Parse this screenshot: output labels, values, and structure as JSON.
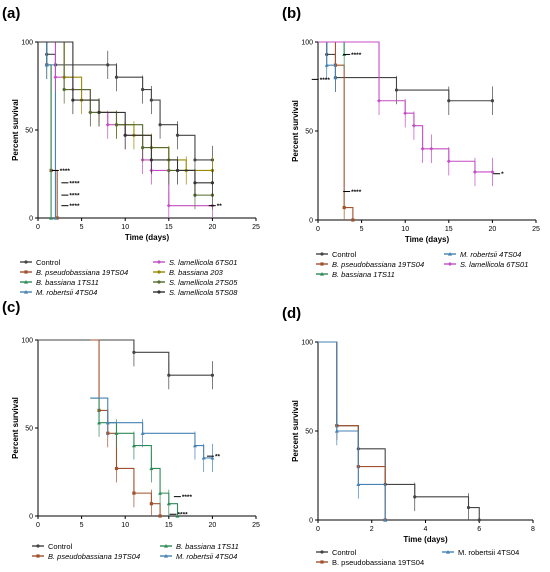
{
  "figure": {
    "panels": [
      "(a)",
      "(b)",
      "(c)",
      "(d)"
    ]
  },
  "chart_data": [
    {
      "type": "line",
      "panel": "(a)",
      "xlabel": "Time (days)",
      "ylabel": "Percent survival",
      "xlim": [
        0,
        25
      ],
      "ylim": [
        0,
        100
      ],
      "xticks": [
        0,
        5,
        10,
        15,
        20,
        25
      ],
      "yticks": [
        0,
        50,
        100
      ],
      "legend_placement": "bottom",
      "series": [
        {
          "name": "Control",
          "italic": false,
          "color": "#444444",
          "style": "circle",
          "x": [
            0,
            1,
            2,
            8,
            9,
            12,
            13,
            14,
            16,
            18,
            20
          ],
          "y": [
            100,
            93,
            87,
            87,
            80,
            73,
            67,
            53,
            47,
            33,
            33
          ]
        },
        {
          "name": "B. pseudobassiana 19TS04",
          "italic": true,
          "color": "#a0522d",
          "style": "square",
          "x": [
            0,
            1,
            1.5,
            2.2
          ],
          "y": [
            100,
            87,
            27,
            0
          ]
        },
        {
          "name": "B. bassiana 1TS11",
          "italic": true,
          "color": "#2e8b57",
          "style": "triangle",
          "x": [
            0,
            1,
            1.5
          ],
          "y": [
            100,
            87,
            0
          ]
        },
        {
          "name": "M. robertsii 4TS04",
          "italic": true,
          "color": "#4682b4",
          "style": "triangle",
          "x": [
            0,
            1,
            2
          ],
          "y": [
            100,
            87,
            0
          ]
        },
        {
          "name": "S. lamellicola 6TS01",
          "italic": true,
          "color": "#c44dc4",
          "style": "diamond",
          "x": [
            0,
            2,
            4,
            6,
            8,
            10,
            12,
            13,
            15,
            20
          ],
          "y": [
            100,
            80,
            73,
            60,
            53,
            47,
            33,
            27,
            7,
            7
          ]
        },
        {
          "name": "B. bassiana 203",
          "italic": true,
          "color": "#9a8a00",
          "style": "circle",
          "x": [
            0,
            3,
            5,
            7,
            9,
            11,
            13,
            15,
            17,
            20
          ],
          "y": [
            100,
            80,
            67,
            60,
            53,
            47,
            40,
            33,
            27,
            27
          ]
        },
        {
          "name": "S. lamellicola 2TS05",
          "italic": true,
          "color": "#556b2f",
          "style": "circle",
          "x": [
            0,
            3,
            6,
            9,
            12,
            15,
            18,
            20
          ],
          "y": [
            100,
            73,
            60,
            53,
            40,
            27,
            13,
            13
          ]
        },
        {
          "name": "S. lamellicola 5TS08",
          "italic": true,
          "color": "#333333",
          "style": "circle",
          "x": [
            0,
            4,
            7,
            10,
            13,
            16,
            18,
            20
          ],
          "y": [
            100,
            67,
            60,
            47,
            33,
            27,
            20,
            20
          ]
        }
      ],
      "annotations": [
        "****",
        "****",
        "****",
        "****",
        "**"
      ]
    },
    {
      "type": "line",
      "panel": "(b)",
      "xlabel": "Time (days)",
      "ylabel": "Percent survival",
      "xlim": [
        0,
        25
      ],
      "ylim": [
        0,
        100
      ],
      "xticks": [
        0,
        5,
        10,
        15,
        20,
        25
      ],
      "yticks": [
        0,
        50,
        100
      ],
      "legend_placement": "bottom",
      "series": [
        {
          "name": "Control",
          "italic": false,
          "color": "#444444",
          "style": "circle",
          "x": [
            0,
            1,
            2,
            9,
            15,
            20
          ],
          "y": [
            100,
            93,
            80,
            73,
            67,
            67
          ]
        },
        {
          "name": "B. pseudobassiana 19TS04",
          "italic": true,
          "color": "#a0522d",
          "style": "square",
          "x": [
            0,
            2,
            3,
            4
          ],
          "y": [
            100,
            87,
            7,
            0
          ]
        },
        {
          "name": "B. bassiana 1TS11",
          "italic": true,
          "color": "#2e8b57",
          "style": "triangle",
          "x": [
            0,
            3
          ],
          "y": [
            100,
            93
          ]
        },
        {
          "name": "M. robertsii 4TS04",
          "italic": true,
          "color": "#4682b4",
          "style": "triangle",
          "x": [
            0,
            1,
            2
          ],
          "y": [
            100,
            87,
            80
          ]
        },
        {
          "name": "S. lamellicola 6TS01",
          "italic": true,
          "color": "#c44dc4",
          "style": "diamond",
          "x": [
            0,
            7,
            10,
            11,
            12,
            13,
            15,
            18,
            20
          ],
          "y": [
            100,
            67,
            60,
            53,
            40,
            40,
            33,
            27,
            27
          ]
        }
      ],
      "annotations": [
        "****",
        "****",
        "****",
        "*"
      ]
    },
    {
      "type": "line",
      "panel": "(c)",
      "xlabel": "",
      "ylabel": "Percent survival",
      "xlim": [
        0,
        25
      ],
      "ylim": [
        0,
        100
      ],
      "xticks": [
        0,
        5,
        10,
        15,
        20,
        25
      ],
      "yticks": [
        0,
        50,
        100
      ],
      "legend_placement": "bottom",
      "series": [
        {
          "name": "Control",
          "italic": false,
          "color": "#444444",
          "style": "circle",
          "x": [
            0,
            11,
            15,
            20
          ],
          "y": [
            100,
            93,
            80,
            80
          ]
        },
        {
          "name": "B. pseudobassiana 19TS04",
          "italic": true,
          "color": "#a0522d",
          "style": "square",
          "x": [
            6,
            7,
            8,
            9,
            11,
            13,
            14
          ],
          "y": [
            100,
            60,
            47,
            27,
            13,
            7,
            0
          ]
        },
        {
          "name": "B. bassiana 1TS11",
          "italic": true,
          "color": "#2e8b57",
          "style": "triangle",
          "x": [
            6,
            7,
            9,
            11,
            13,
            14,
            15,
            16
          ],
          "y": [
            67,
            53,
            47,
            40,
            27,
            13,
            7,
            0
          ]
        },
        {
          "name": "M. robertsii 4TS04",
          "italic": true,
          "color": "#4682b4",
          "style": "triangle",
          "x": [
            6,
            8,
            12,
            18,
            19,
            20
          ],
          "y": [
            67,
            53,
            47,
            40,
            33,
            33
          ]
        }
      ],
      "annotations": [
        "**",
        "****",
        "****"
      ]
    },
    {
      "type": "line",
      "panel": "(d)",
      "xlabel": "Time (days)",
      "ylabel": "Percent survival",
      "xlim": [
        0,
        8
      ],
      "ylim": [
        0,
        100
      ],
      "xticks": [
        0,
        2,
        4,
        6,
        8
      ],
      "yticks": [
        0,
        50,
        100
      ],
      "legend_placement": "bottom",
      "series": [
        {
          "name": "Control",
          "italic": false,
          "color": "#444444",
          "style": "circle",
          "x": [
            0,
            0.7,
            1.5,
            2.5,
            3.6,
            5.6,
            6
          ],
          "y": [
            100,
            53,
            40,
            20,
            13,
            7,
            0
          ]
        },
        {
          "name": "B. pseudobassiana 19TS04",
          "italic": false,
          "color": "#a0522d",
          "style": "square",
          "x": [
            0,
            0.7,
            1.5,
            2.5
          ],
          "y": [
            100,
            53,
            30,
            0
          ]
        },
        {
          "name": "M. robertsii 4TS04",
          "italic": false,
          "color": "#4682b4",
          "style": "triangle",
          "x": [
            0,
            0.7,
            1.5,
            2.5
          ],
          "y": [
            100,
            50,
            20,
            0
          ]
        }
      ],
      "annotations": []
    }
  ]
}
